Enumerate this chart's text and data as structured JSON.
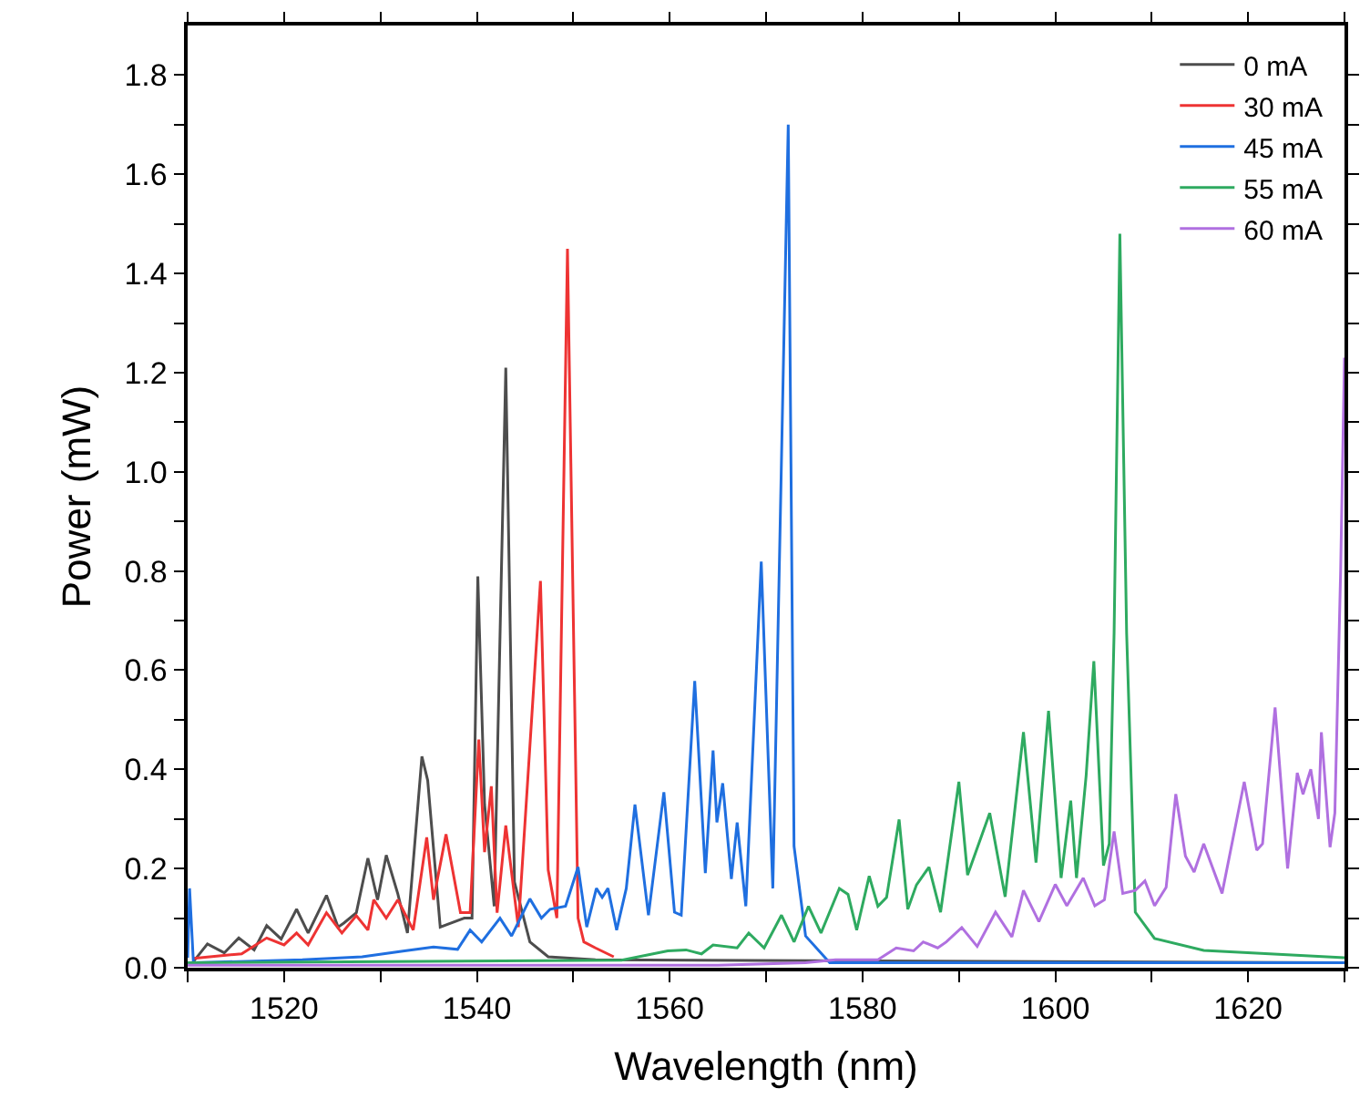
{
  "chart_data": {
    "type": "line",
    "xlabel": "Wavelength (nm)",
    "ylabel": "Power (mW)",
    "xlim": [
      1510,
      1630
    ],
    "ylim": [
      0,
      1.9
    ],
    "xticks": [
      {
        "value": 1510,
        "label": null
      },
      1520,
      {
        "value": 1530,
        "label": null
      },
      1540,
      {
        "value": 1550,
        "label": null
      },
      1560,
      {
        "value": 1570,
        "label": null
      },
      1580,
      {
        "value": 1590,
        "label": null
      },
      1600,
      {
        "value": 1610,
        "label": null
      },
      1620,
      {
        "value": 1630,
        "label": null
      }
    ],
    "yticks": [
      {
        "value": 0,
        "label": "0.0"
      },
      {
        "value": 0.1,
        "label": null
      },
      0.2,
      {
        "value": 0.3,
        "label": null
      },
      0.4,
      {
        "value": 0.5,
        "label": null
      },
      0.6,
      {
        "value": 0.7,
        "label": null
      },
      0.8,
      {
        "value": 0.9,
        "label": null
      },
      {
        "value": 1.0,
        "label": "1.0"
      },
      {
        "value": 1.1,
        "label": null
      },
      1.2,
      {
        "value": 1.3,
        "label": null
      },
      1.4,
      {
        "value": 1.5,
        "label": null
      },
      1.6,
      {
        "value": 1.7,
        "label": null
      },
      1.8
    ],
    "grid": false,
    "legend": "top right",
    "marker": "none",
    "line_style": "solid",
    "series": [
      {
        "name": "0 mA",
        "color": "#4d4d4d",
        "x": [
          1510,
          1510.5,
          1512.05,
          1513.8,
          1515.3,
          1516.9,
          1518.2,
          1519.7,
          1521.3,
          1522.5,
          1524.4,
          1525.6,
          1526.2,
          1527.5,
          1528.7,
          1529.7,
          1530.6,
          1531.8,
          1532.8,
          1534.3,
          1534.9,
          1536.2,
          1538.7,
          1539.5,
          1540.1,
          1540.8,
          1541.8,
          1543.0,
          1543.9,
          1545.5,
          1547.4,
          1552.3,
          1630
        ],
        "values": [
          0.01,
          0.01,
          0.048,
          0.03,
          0.06,
          0.036,
          0.085,
          0.058,
          0.118,
          0.07,
          0.146,
          0.082,
          0.09,
          0.111,
          0.221,
          0.137,
          0.227,
          0.149,
          0.07,
          0.426,
          0.378,
          0.082,
          0.1,
          0.1,
          0.789,
          0.33,
          0.124,
          1.21,
          0.173,
          0.052,
          0.022,
          0.016,
          0.01
        ]
      },
      {
        "name": "30 mA",
        "color": "#ee3333",
        "x": [
          1510.6,
          1515.6,
          1518.2,
          1520.0,
          1521.3,
          1522.5,
          1524.4,
          1526.0,
          1527.5,
          1528.7,
          1529.3,
          1530.6,
          1531.8,
          1533.4,
          1534.8,
          1535.5,
          1536.8,
          1538.3,
          1539.3,
          1540.2,
          1540.8,
          1541.5,
          1542.1,
          1543.0,
          1544.3,
          1546.6,
          1547.4,
          1548.3,
          1549.4,
          1550.5,
          1551.1,
          1552.3,
          1554.2
        ],
        "values": [
          0.019,
          0.028,
          0.06,
          0.046,
          0.07,
          0.046,
          0.111,
          0.07,
          0.105,
          0.076,
          0.137,
          0.1,
          0.137,
          0.076,
          0.263,
          0.137,
          0.269,
          0.111,
          0.111,
          0.46,
          0.233,
          0.366,
          0.111,
          0.287,
          0.082,
          0.78,
          0.197,
          0.1,
          1.45,
          0.1,
          0.052,
          0.04,
          0.022
        ]
      },
      {
        "name": "45 mA",
        "color": "#1f6fe0",
        "x": [
          1510,
          1510.2,
          1510.6,
          1521.9,
          1528.1,
          1532.5,
          1535.5,
          1538.0,
          1539.3,
          1540.5,
          1542.4,
          1543.6,
          1545.5,
          1546.7,
          1547.6,
          1549.2,
          1550.5,
          1551.4,
          1552.4,
          1553.0,
          1553.6,
          1554.5,
          1555.5,
          1556.4,
          1557.8,
          1559.4,
          1560.5,
          1561.2,
          1562.6,
          1563.7,
          1564.5,
          1564.9,
          1565.5,
          1566.4,
          1567.0,
          1567.9,
          1569.5,
          1570.7,
          1572.3,
          1572.9,
          1574.1,
          1576.6,
          1630
        ],
        "values": [
          0.02,
          0.16,
          0.01,
          0.016,
          0.022,
          0.034,
          0.042,
          0.037,
          0.076,
          0.052,
          0.1,
          0.064,
          0.139,
          0.1,
          0.118,
          0.124,
          0.203,
          0.082,
          0.16,
          0.142,
          0.16,
          0.076,
          0.16,
          0.329,
          0.106,
          0.354,
          0.112,
          0.106,
          0.578,
          0.191,
          0.438,
          0.293,
          0.372,
          0.179,
          0.293,
          0.124,
          0.819,
          0.16,
          1.7,
          0.245,
          0.064,
          0.01,
          0.01
        ]
      },
      {
        "name": "55 mA",
        "color": "#2eaa60",
        "x": [
          1510,
          1555,
          1559.8,
          1561.7,
          1563.3,
          1564.5,
          1567.0,
          1568.2,
          1569.8,
          1571.6,
          1572.9,
          1574.4,
          1575.7,
          1577.6,
          1578.5,
          1579.4,
          1580.7,
          1581.6,
          1582.5,
          1583.8,
          1584.7,
          1585.6,
          1586.9,
          1588.1,
          1590.0,
          1590.9,
          1593.2,
          1594.8,
          1596.7,
          1598.0,
          1599.3,
          1600.6,
          1601.6,
          1602.2,
          1603.2,
          1604.0,
          1605.0,
          1605.6,
          1606.1,
          1606.7,
          1607.4,
          1608.3,
          1610.3,
          1615.4,
          1630
        ],
        "values": [
          0.01,
          0.015,
          0.034,
          0.036,
          0.028,
          0.046,
          0.04,
          0.07,
          0.04,
          0.106,
          0.052,
          0.124,
          0.07,
          0.16,
          0.148,
          0.076,
          0.185,
          0.124,
          0.142,
          0.299,
          0.118,
          0.167,
          0.203,
          0.112,
          0.375,
          0.187,
          0.312,
          0.143,
          0.475,
          0.212,
          0.518,
          0.181,
          0.337,
          0.181,
          0.387,
          0.618,
          0.206,
          0.25,
          0.675,
          1.48,
          0.675,
          0.112,
          0.059,
          0.035,
          0.02
        ]
      },
      {
        "name": "60 mA",
        "color": "#b070e0",
        "x": [
          1510,
          1565,
          1574.1,
          1577.2,
          1581.6,
          1583.5,
          1585.3,
          1586.3,
          1587.8,
          1588.7,
          1590.3,
          1591.9,
          1593.8,
          1595.5,
          1596.7,
          1598.3,
          1600.0,
          1601.2,
          1602.9,
          1604.1,
          1605.1,
          1606.1,
          1607.0,
          1608.3,
          1609.3,
          1610.3,
          1611.5,
          1612.5,
          1613.5,
          1614.4,
          1615.4,
          1617.3,
          1619.6,
          1620.9,
          1621.5,
          1622.8,
          1624.1,
          1625.1,
          1625.7,
          1626.5,
          1627.3,
          1627.6,
          1628.5,
          1629.0,
          1629.6,
          1630
        ],
        "values": [
          0.005,
          0.005,
          0.01,
          0.016,
          0.016,
          0.04,
          0.034,
          0.052,
          0.04,
          0.052,
          0.081,
          0.043,
          0.112,
          0.062,
          0.156,
          0.093,
          0.168,
          0.125,
          0.181,
          0.125,
          0.137,
          0.275,
          0.15,
          0.156,
          0.175,
          0.125,
          0.162,
          0.35,
          0.225,
          0.193,
          0.25,
          0.15,
          0.375,
          0.237,
          0.25,
          0.525,
          0.2,
          0.393,
          0.35,
          0.4,
          0.3,
          0.475,
          0.243,
          0.312,
          0.8,
          1.23
        ]
      }
    ]
  }
}
